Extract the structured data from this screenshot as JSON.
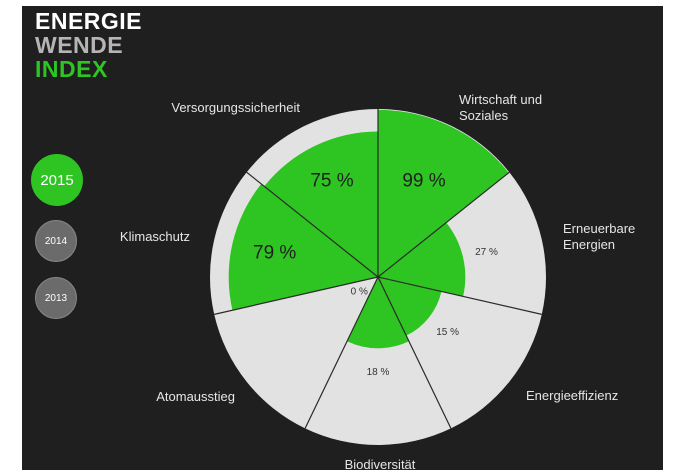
{
  "logo": {
    "line1": "ENERGIE",
    "line2": "WENDE",
    "line3": "INDEX"
  },
  "years": [
    "2015",
    "2014",
    "2013"
  ],
  "chart_data": {
    "type": "polar",
    "categories": [
      "Wirtschaft und Soziales",
      "Erneuerbare Energien",
      "Energieeffizienz",
      "Biodiversität",
      "Atomausstieg",
      "Klimaschutz",
      "Versorgungssicherheit"
    ],
    "values": [
      99,
      27,
      15,
      18,
      0,
      79,
      75
    ],
    "value_labels": [
      "99 %",
      "27 %",
      "15 %",
      "18 %",
      "0 %",
      "79 %",
      "75 %"
    ],
    "rlim": [
      0,
      100
    ],
    "color": "#2ec422",
    "background_color": "#e2e2e2"
  }
}
